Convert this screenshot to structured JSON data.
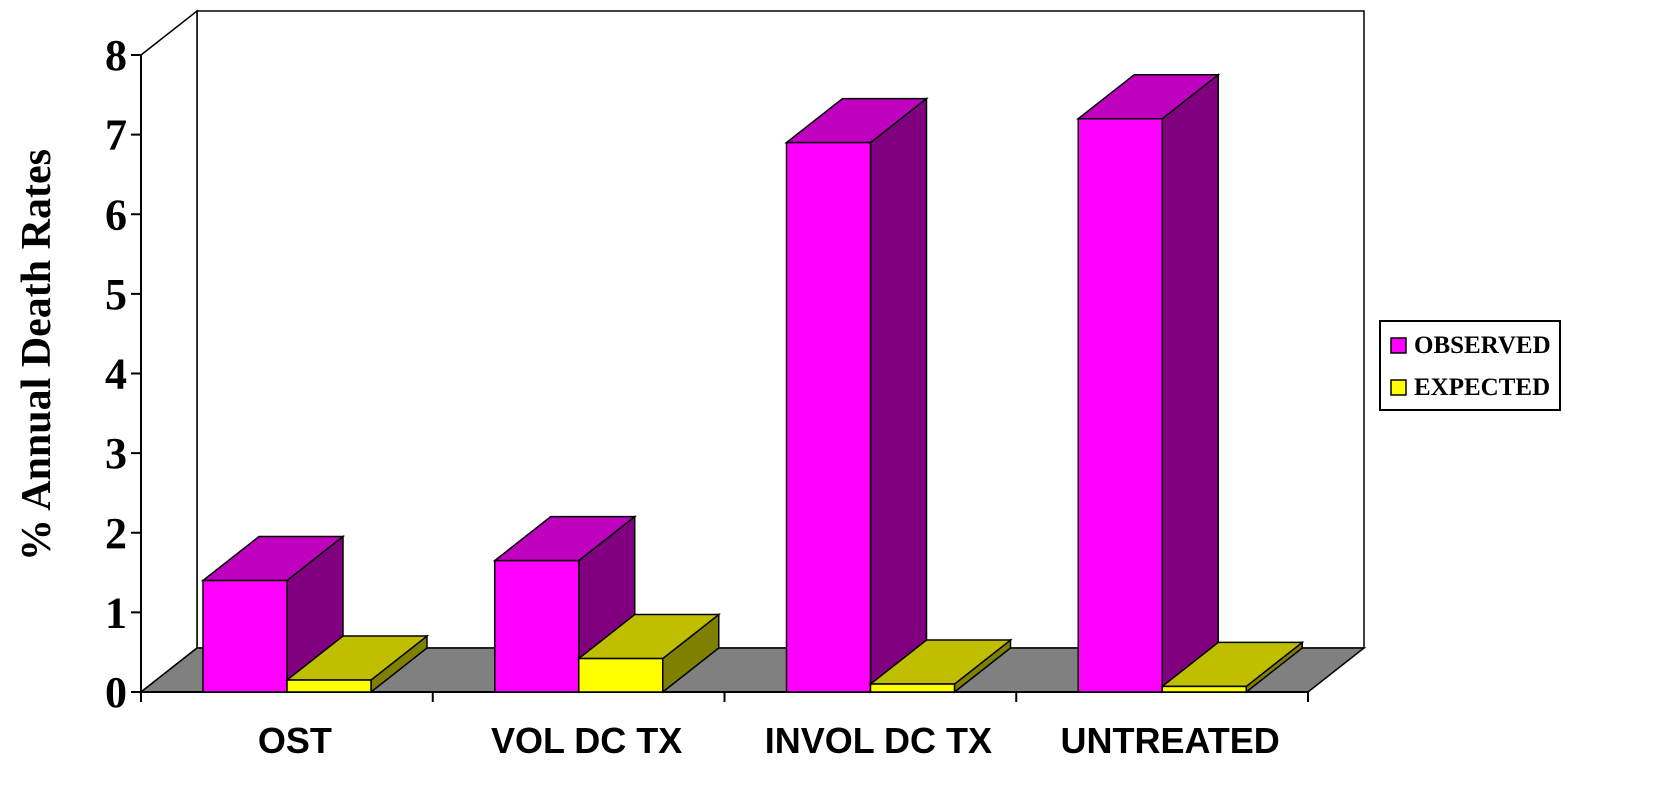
{
  "chart_data": {
    "type": "bar",
    "title": "",
    "xlabel": "",
    "ylabel": "% Annual Death Rates",
    "categories": [
      "OST",
      "VOL DC TX",
      "INVOL DC TX",
      "UNTREATED"
    ],
    "series": [
      {
        "name": "OBSERVED",
        "values": [
          1.4,
          1.65,
          6.9,
          7.2
        ],
        "color": "#ff00ff"
      },
      {
        "name": "EXPECTED",
        "values": [
          0.15,
          0.42,
          0.1,
          0.07
        ],
        "color": "#ffff00"
      }
    ],
    "ylim": [
      0,
      8
    ],
    "yticks": [
      "0",
      "1",
      "2",
      "3",
      "4",
      "5",
      "6",
      "7",
      "8"
    ],
    "grid": false,
    "legend_position": "right",
    "floor_color": "#808080"
  }
}
